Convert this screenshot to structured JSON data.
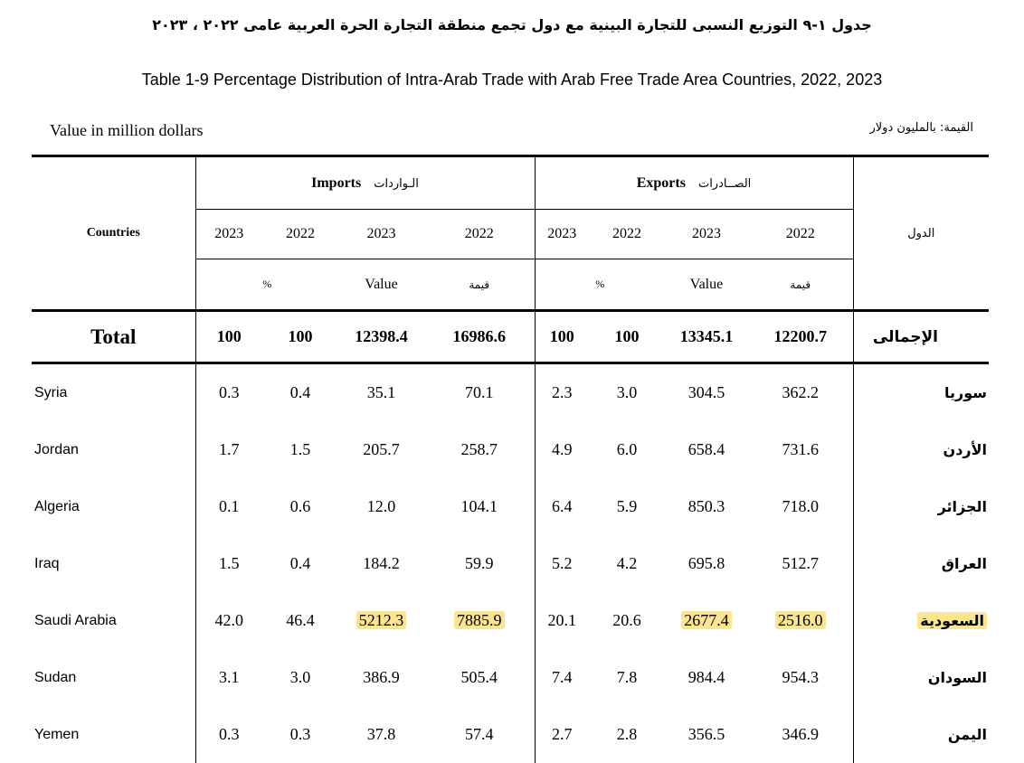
{
  "title_ar": "جدول ١-٩ التوزيع النسبى للتجارة البينية مع دول تجمع منطقة التجارة الحرة العربية عامى ٢٠٢٢ ، ٢٠٢٣",
  "title_en": "Table 1-9 Percentage Distribution of Intra-Arab Trade with Arab Free Trade Area Countries, 2022, 2023",
  "unit_en": "Value in million dollars",
  "unit_ar": "القيمة: بالمليون دولار",
  "header": {
    "countries_en": "Countries",
    "countries_ar": "الدول",
    "imports_en": "Imports",
    "imports_ar": "الـواردات",
    "exports_en": "Exports",
    "exports_ar": "الصــادرات",
    "years": [
      "2023",
      "2022",
      "2023",
      "2022",
      "2023",
      "2022",
      "2023",
      "2022"
    ],
    "percent": "%",
    "value_en": "Value",
    "value_ar": "قيمة"
  },
  "total": {
    "en": "Total",
    "ar": "الإجمالى",
    "values": [
      "100",
      "100",
      "12398.4",
      "16986.6",
      "100",
      "100",
      "13345.1",
      "12200.7"
    ]
  },
  "rows": [
    {
      "en": "Syria",
      "ar": "سوريا",
      "values": [
        "0.3",
        "0.4",
        "35.1",
        "70.1",
        "2.3",
        "3.0",
        "304.5",
        "362.2"
      ]
    },
    {
      "en": "Jordan",
      "ar": "الأردن",
      "values": [
        "1.7",
        "1.5",
        "205.7",
        "258.7",
        "4.9",
        "6.0",
        "658.4",
        "731.6"
      ]
    },
    {
      "en": "Algeria",
      "ar": "الجزائر",
      "values": [
        "0.1",
        "0.6",
        "12.0",
        "104.1",
        "6.4",
        "5.9",
        "850.3",
        "718.0"
      ]
    },
    {
      "en": "Iraq",
      "ar": "العراق",
      "values": [
        "1.5",
        "0.4",
        "184.2",
        "59.9",
        "5.2",
        "4.2",
        "695.8",
        "512.7"
      ]
    },
    {
      "en": "Saudi Arabia",
      "ar": "السعودية",
      "values": [
        "42.0",
        "46.4",
        "5212.3",
        "7885.9",
        "20.1",
        "20.6",
        "2677.4",
        "2516.0"
      ]
    },
    {
      "en": "Sudan",
      "ar": "السودان",
      "values": [
        "3.1",
        "3.0",
        "386.9",
        "505.4",
        "7.4",
        "7.8",
        "984.4",
        "954.3"
      ]
    },
    {
      "en": "Yemen",
      "ar": "اليمن",
      "values": [
        "0.3",
        "0.3",
        "37.8",
        "57.4",
        "2.7",
        "2.8",
        "356.5",
        "346.9"
      ]
    }
  ],
  "highlight_color": "#fbe590"
}
